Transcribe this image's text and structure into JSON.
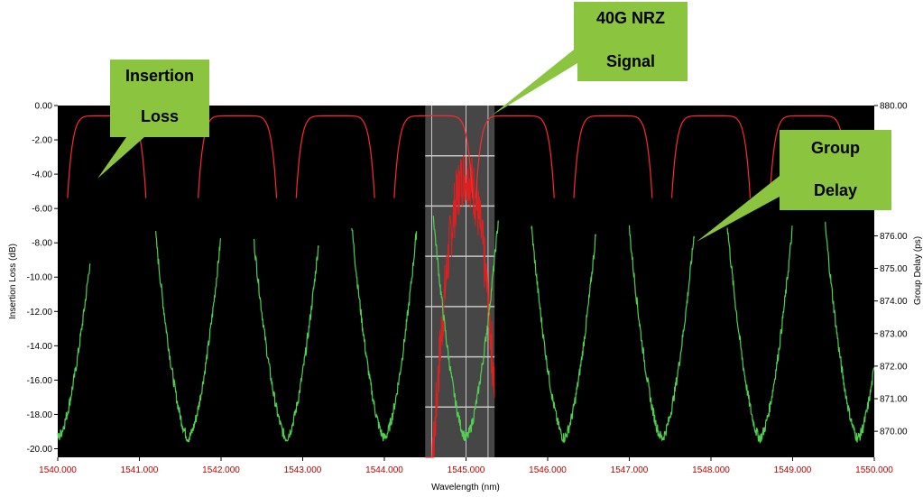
{
  "colors": {
    "plot_background": "#000000",
    "insertion_loss": "#ff2a2a",
    "group_delay": "#4fd14f",
    "signal_trace": "#e02020",
    "highlight_band": "#808080",
    "highlight_lines": "#c8c8c8",
    "callout_fill": "#8bc53f",
    "tick_text_x": "#c00000",
    "tick_text_y": "#000000"
  },
  "callouts": {
    "insertion_loss": {
      "line1": "Insertion",
      "line2": "Loss"
    },
    "signal": {
      "line1": "40G NRZ",
      "line2": "Signal"
    },
    "group_delay": {
      "line1": "Group",
      "line2": "Delay"
    }
  },
  "chart_data": {
    "type": "line",
    "xlabel": "Wavelength (nm)",
    "ylabel_left": "Insertion Loss (dB)",
    "ylabel_right": "Group Delay (ps)",
    "xlim": [
      1540.0,
      1550.0
    ],
    "ylim_left": [
      -20.5,
      0.0
    ],
    "ylim_right": [
      869.2,
      880.0
    ],
    "x_ticks": [
      "1540.000",
      "1541.000",
      "1542.000",
      "1543.000",
      "1544.000",
      "1545.000",
      "1546.000",
      "1547.000",
      "1548.000",
      "1549.000",
      "1550.000"
    ],
    "y_ticks_left": [
      "0.00",
      "-2.00",
      "-4.00",
      "-6.00",
      "-8.00",
      "-10.00",
      "-12.00",
      "-14.00",
      "-16.00",
      "-18.00",
      "-20.00"
    ],
    "y_ticks_right": [
      "880.00",
      "876.00",
      "875.00",
      "874.00",
      "873.00",
      "872.00",
      "871.00",
      "870.00"
    ],
    "channel_centers_nm": [
      1540.0,
      1541.6,
      1542.8,
      1544.0,
      1545.0,
      1546.2,
      1547.4,
      1548.6,
      1549.8
    ],
    "channel_passband_db": -0.6,
    "group_delay_peaks_ps": [
      875.3,
      876.0,
      875.9,
      876.3,
      876.6,
      876.3,
      876.2,
      876.3,
      876.3
    ],
    "group_delay_floor_ps": 869.8,
    "signal_band_nm": [
      1544.5,
      1545.35
    ],
    "signal_center_nm": 1545.0,
    "signal_peak_db": -4.0
  }
}
